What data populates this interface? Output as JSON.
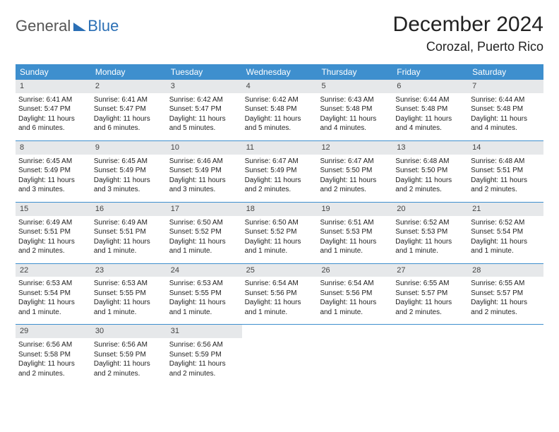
{
  "logo": {
    "text1": "General",
    "text2": "Blue"
  },
  "title": "December 2024",
  "location": "Corozal, Puerto Rico",
  "weekdays": [
    "Sunday",
    "Monday",
    "Tuesday",
    "Wednesday",
    "Thursday",
    "Friday",
    "Saturday"
  ],
  "colors": {
    "header_bg": "#3e8fce",
    "header_text": "#ffffff",
    "daynum_bg": "#e6e8ea",
    "text": "#222222",
    "logo_gray": "#555555",
    "logo_blue": "#2b6fb5",
    "rule": "#3e8fce"
  },
  "typography": {
    "title_size": 30,
    "location_size": 18,
    "weekday_size": 12,
    "daynum_size": 11,
    "body_size": 10
  },
  "layout": {
    "cols": 7,
    "rows": 5,
    "first_weekday_index": 0
  },
  "days": [
    {
      "n": "1",
      "sunrise": "6:41 AM",
      "sunset": "5:47 PM",
      "daylight": "11 hours and 6 minutes."
    },
    {
      "n": "2",
      "sunrise": "6:41 AM",
      "sunset": "5:47 PM",
      "daylight": "11 hours and 6 minutes."
    },
    {
      "n": "3",
      "sunrise": "6:42 AM",
      "sunset": "5:47 PM",
      "daylight": "11 hours and 5 minutes."
    },
    {
      "n": "4",
      "sunrise": "6:42 AM",
      "sunset": "5:48 PM",
      "daylight": "11 hours and 5 minutes."
    },
    {
      "n": "5",
      "sunrise": "6:43 AM",
      "sunset": "5:48 PM",
      "daylight": "11 hours and 4 minutes."
    },
    {
      "n": "6",
      "sunrise": "6:44 AM",
      "sunset": "5:48 PM",
      "daylight": "11 hours and 4 minutes."
    },
    {
      "n": "7",
      "sunrise": "6:44 AM",
      "sunset": "5:48 PM",
      "daylight": "11 hours and 4 minutes."
    },
    {
      "n": "8",
      "sunrise": "6:45 AM",
      "sunset": "5:49 PM",
      "daylight": "11 hours and 3 minutes."
    },
    {
      "n": "9",
      "sunrise": "6:45 AM",
      "sunset": "5:49 PM",
      "daylight": "11 hours and 3 minutes."
    },
    {
      "n": "10",
      "sunrise": "6:46 AM",
      "sunset": "5:49 PM",
      "daylight": "11 hours and 3 minutes."
    },
    {
      "n": "11",
      "sunrise": "6:47 AM",
      "sunset": "5:49 PM",
      "daylight": "11 hours and 2 minutes."
    },
    {
      "n": "12",
      "sunrise": "6:47 AM",
      "sunset": "5:50 PM",
      "daylight": "11 hours and 2 minutes."
    },
    {
      "n": "13",
      "sunrise": "6:48 AM",
      "sunset": "5:50 PM",
      "daylight": "11 hours and 2 minutes."
    },
    {
      "n": "14",
      "sunrise": "6:48 AM",
      "sunset": "5:51 PM",
      "daylight": "11 hours and 2 minutes."
    },
    {
      "n": "15",
      "sunrise": "6:49 AM",
      "sunset": "5:51 PM",
      "daylight": "11 hours and 2 minutes."
    },
    {
      "n": "16",
      "sunrise": "6:49 AM",
      "sunset": "5:51 PM",
      "daylight": "11 hours and 1 minute."
    },
    {
      "n": "17",
      "sunrise": "6:50 AM",
      "sunset": "5:52 PM",
      "daylight": "11 hours and 1 minute."
    },
    {
      "n": "18",
      "sunrise": "6:50 AM",
      "sunset": "5:52 PM",
      "daylight": "11 hours and 1 minute."
    },
    {
      "n": "19",
      "sunrise": "6:51 AM",
      "sunset": "5:53 PM",
      "daylight": "11 hours and 1 minute."
    },
    {
      "n": "20",
      "sunrise": "6:52 AM",
      "sunset": "5:53 PM",
      "daylight": "11 hours and 1 minute."
    },
    {
      "n": "21",
      "sunrise": "6:52 AM",
      "sunset": "5:54 PM",
      "daylight": "11 hours and 1 minute."
    },
    {
      "n": "22",
      "sunrise": "6:53 AM",
      "sunset": "5:54 PM",
      "daylight": "11 hours and 1 minute."
    },
    {
      "n": "23",
      "sunrise": "6:53 AM",
      "sunset": "5:55 PM",
      "daylight": "11 hours and 1 minute."
    },
    {
      "n": "24",
      "sunrise": "6:53 AM",
      "sunset": "5:55 PM",
      "daylight": "11 hours and 1 minute."
    },
    {
      "n": "25",
      "sunrise": "6:54 AM",
      "sunset": "5:56 PM",
      "daylight": "11 hours and 1 minute."
    },
    {
      "n": "26",
      "sunrise": "6:54 AM",
      "sunset": "5:56 PM",
      "daylight": "11 hours and 1 minute."
    },
    {
      "n": "27",
      "sunrise": "6:55 AM",
      "sunset": "5:57 PM",
      "daylight": "11 hours and 2 minutes."
    },
    {
      "n": "28",
      "sunrise": "6:55 AM",
      "sunset": "5:57 PM",
      "daylight": "11 hours and 2 minutes."
    },
    {
      "n": "29",
      "sunrise": "6:56 AM",
      "sunset": "5:58 PM",
      "daylight": "11 hours and 2 minutes."
    },
    {
      "n": "30",
      "sunrise": "6:56 AM",
      "sunset": "5:59 PM",
      "daylight": "11 hours and 2 minutes."
    },
    {
      "n": "31",
      "sunrise": "6:56 AM",
      "sunset": "5:59 PM",
      "daylight": "11 hours and 2 minutes."
    }
  ],
  "labels": {
    "sunrise": "Sunrise:",
    "sunset": "Sunset:",
    "daylight": "Daylight:"
  }
}
